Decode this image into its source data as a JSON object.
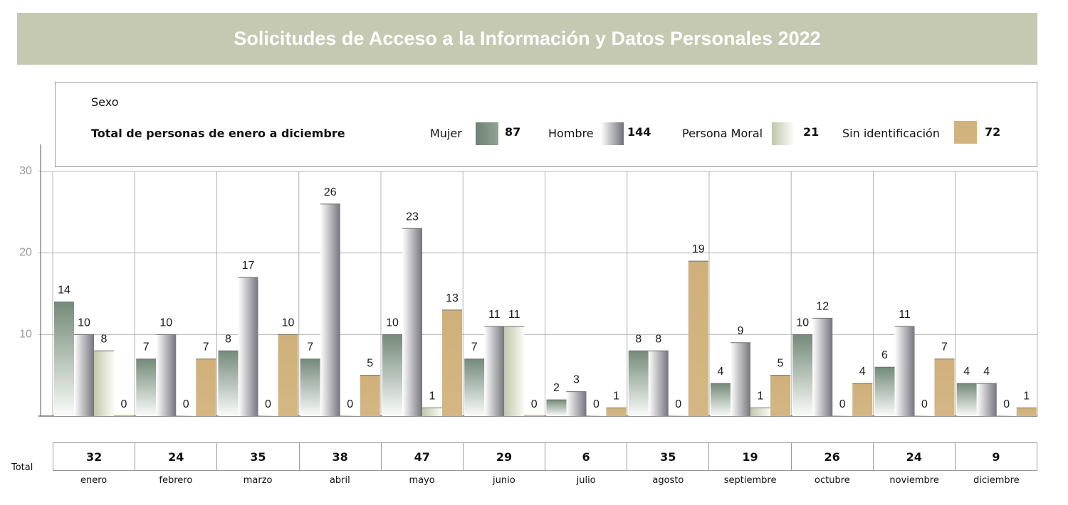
{
  "title": "Solicitudes de Acceso a la Información y Datos Personales 2022",
  "legend": {
    "heading": "Sexo",
    "subheading": "Total de personas de enero a diciembre",
    "items": [
      {
        "label": "Mujer",
        "total": "87",
        "color": "#7f9284"
      },
      {
        "label": "Hombre",
        "total": "144",
        "color": "#8e8e96"
      },
      {
        "label": "Persona Moral",
        "total": "21",
        "color": "#d7dcc6"
      },
      {
        "label": "Sin identificación",
        "total": "72",
        "color": "#d1b37d"
      }
    ]
  },
  "totals_label": "Total",
  "totals": [
    "32",
    "24",
    "35",
    "38",
    "47",
    "29",
    "6",
    "35",
    "19",
    "26",
    "24",
    "9"
  ],
  "chart_data": {
    "type": "bar",
    "categories": [
      "enero",
      "febrero",
      "marzo",
      "abril",
      "mayo",
      "junio",
      "julio",
      "agosto",
      "septiembre",
      "octubre",
      "noviembre",
      "diciembre"
    ],
    "series": [
      {
        "name": "Mujer",
        "values": [
          14,
          7,
          8,
          7,
          10,
          7,
          2,
          8,
          4,
          10,
          6,
          4
        ]
      },
      {
        "name": "Hombre",
        "values": [
          10,
          10,
          17,
          26,
          23,
          11,
          3,
          8,
          9,
          12,
          11,
          4
        ]
      },
      {
        "name": "Persona Moral",
        "values": [
          8,
          0,
          0,
          0,
          1,
          11,
          0,
          0,
          1,
          0,
          0,
          0
        ]
      },
      {
        "name": "Sin identificación",
        "values": [
          0,
          7,
          10,
          5,
          13,
          0,
          1,
          19,
          5,
          4,
          7,
          1
        ]
      }
    ],
    "ylim": [
      0,
      30
    ],
    "yticks": [
      10,
      20,
      30
    ],
    "grid": true,
    "legend_position": "top"
  }
}
